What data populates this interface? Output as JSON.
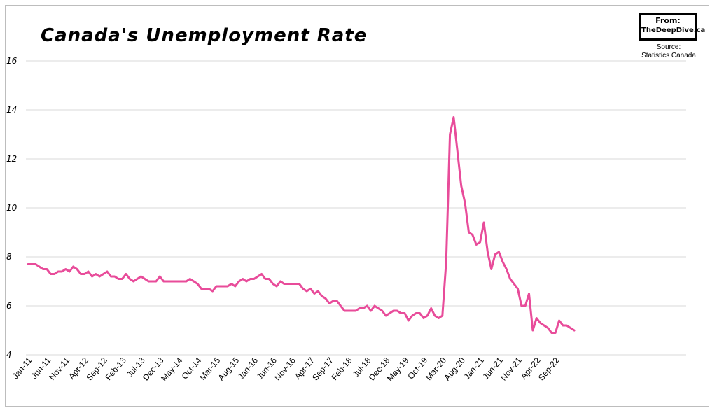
{
  "chart_data": {
    "type": "line",
    "title": "Canada's Unemployment Rate",
    "xlabel": "",
    "ylabel": "",
    "ylim": [
      4,
      16
    ],
    "yticks": [
      4,
      6,
      8,
      10,
      12,
      14,
      16
    ],
    "grid": true,
    "legend": "none",
    "color": "#e84c9a",
    "xtick_labels": [
      "Jan-11",
      "Jun-11",
      "Nov-11",
      "Apr-12",
      "Sep-12",
      "Feb-13",
      "Jul-13",
      "Dec-13",
      "May-14",
      "Oct-14",
      "Mar-15",
      "Aug-15",
      "Jan-16",
      "Jun-16",
      "Nov-16",
      "Apr-17",
      "Sep-17",
      "Feb-18",
      "Jul-18",
      "Dec-18",
      "May-19",
      "Oct-19",
      "Mar-20",
      "Aug-20",
      "Jan-21",
      "Jun-21",
      "Nov-21",
      "Apr-22",
      "Sep-22"
    ],
    "start_month": "Jan-11",
    "values": [
      7.7,
      7.7,
      7.7,
      7.6,
      7.5,
      7.5,
      7.3,
      7.3,
      7.4,
      7.4,
      7.5,
      7.4,
      7.6,
      7.5,
      7.3,
      7.3,
      7.4,
      7.2,
      7.3,
      7.2,
      7.3,
      7.4,
      7.2,
      7.2,
      7.1,
      7.1,
      7.3,
      7.1,
      7.0,
      7.1,
      7.2,
      7.1,
      7.0,
      7.0,
      7.0,
      7.2,
      7.0,
      7.0,
      7.0,
      7.0,
      7.0,
      7.0,
      7.0,
      7.1,
      7.0,
      6.9,
      6.7,
      6.7,
      6.7,
      6.6,
      6.8,
      6.8,
      6.8,
      6.8,
      6.9,
      6.8,
      7.0,
      7.1,
      7.0,
      7.1,
      7.1,
      7.2,
      7.3,
      7.1,
      7.1,
      6.9,
      6.8,
      7.0,
      6.9,
      6.9,
      6.9,
      6.9,
      6.9,
      6.7,
      6.6,
      6.7,
      6.5,
      6.6,
      6.4,
      6.3,
      6.1,
      6.2,
      6.2,
      6.0,
      5.8,
      5.8,
      5.8,
      5.8,
      5.9,
      5.9,
      6.0,
      5.8,
      6.0,
      5.9,
      5.8,
      5.6,
      5.7,
      5.8,
      5.8,
      5.7,
      5.7,
      5.4,
      5.6,
      5.7,
      5.7,
      5.5,
      5.6,
      5.9,
      5.6,
      5.5,
      5.6,
      7.8,
      13.0,
      13.7,
      12.3,
      10.9,
      10.2,
      9.0,
      8.9,
      8.5,
      8.6,
      9.4,
      8.2,
      7.5,
      8.1,
      8.2,
      7.8,
      7.5,
      7.1,
      6.9,
      6.7,
      6.0,
      6.0,
      6.5,
      5.0,
      5.5,
      5.3,
      5.2,
      5.1,
      4.9,
      4.9,
      5.4,
      5.2,
      5.2,
      5.1,
      5.0
    ]
  },
  "logo": {
    "line1": "From:",
    "line2": "TheDeepDive.ca"
  },
  "source": {
    "line1": "Source:",
    "line2": "Statistics Canada"
  }
}
